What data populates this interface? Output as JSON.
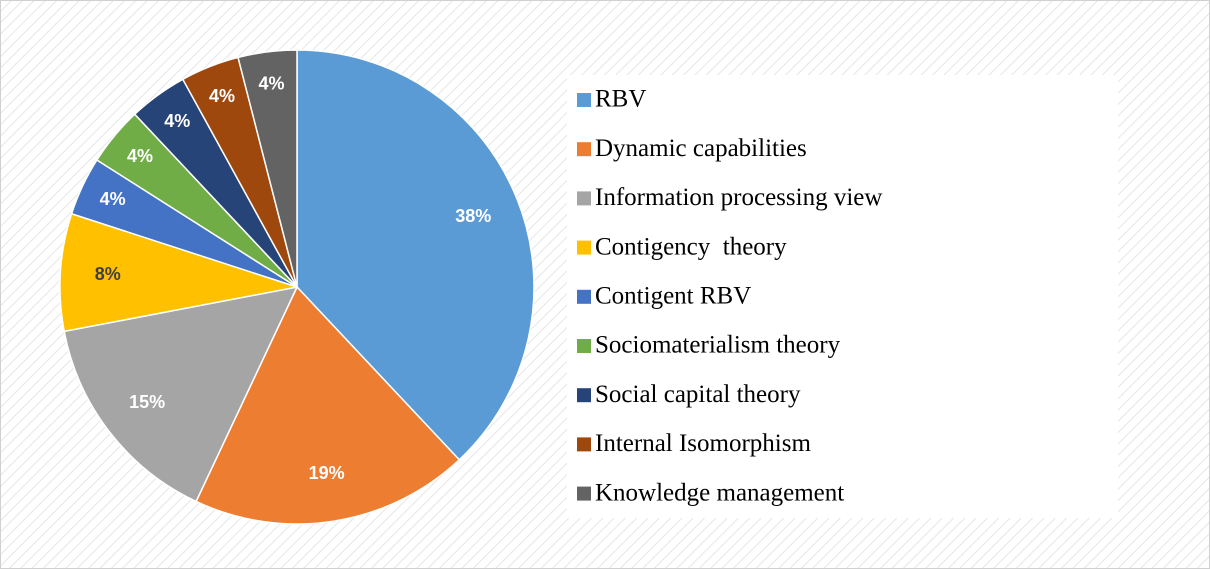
{
  "chart_data": {
    "type": "pie",
    "categories": [
      "RBV",
      "Dynamic capabilities",
      "Information processing view",
      "Contigency  theory",
      "Contigent RBV",
      "Sociomaterialism theory",
      "Social capital theory",
      "Internal Isomorphism",
      "Knowledge management"
    ],
    "values": [
      38,
      19,
      15,
      8,
      4,
      4,
      4,
      4,
      4
    ],
    "value_labels": [
      "38%",
      "19%",
      "15%",
      "8%",
      "4%",
      "4%",
      "4%",
      "4%",
      "4%"
    ],
    "colors": [
      "#5b9bd5",
      "#ed7d31",
      "#a5a5a5",
      "#ffc000",
      "#4472c4",
      "#70ad47",
      "#264478",
      "#9e480e",
      "#636363"
    ],
    "value_label_colors": [
      "#ffffff",
      "#ffffff",
      "#ffffff",
      "#404040",
      "#ffffff",
      "#ffffff",
      "#ffffff",
      "#ffffff",
      "#ffffff"
    ],
    "legend": "right"
  }
}
